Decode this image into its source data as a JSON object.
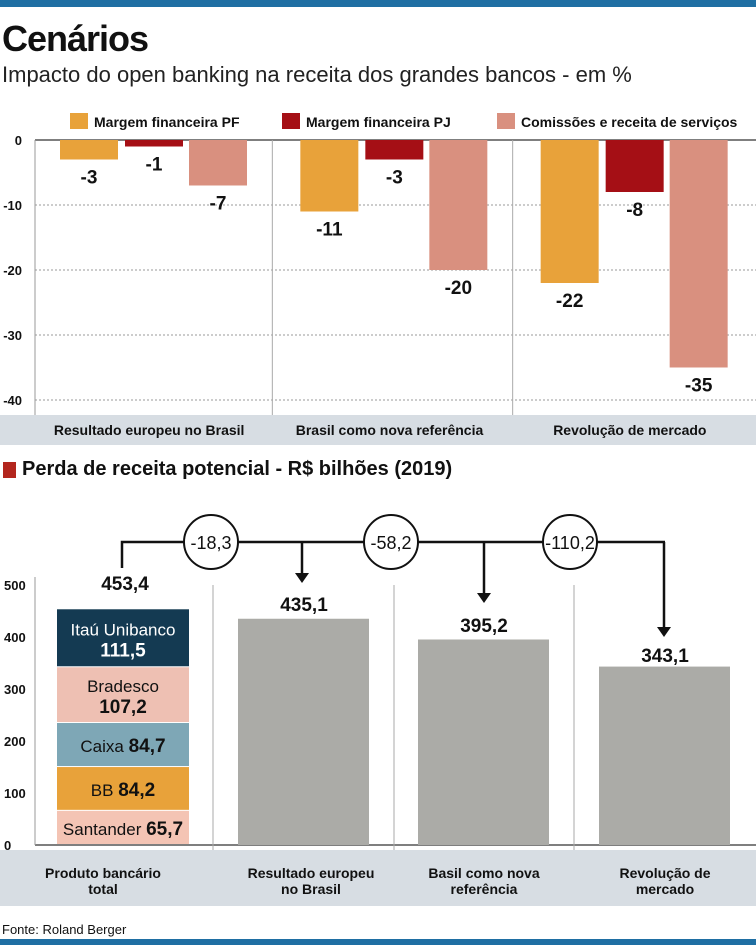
{
  "title": "Cenários",
  "subtitle": "Impacto do open banking na receita dos grandes bancos - em %",
  "section2_title": "Perda de receita potencial - R$ bilhões (2019)",
  "source": "Fonte: Roland Berger",
  "colors": {
    "margem_pf": "#e8a23a",
    "margem_pj": "#a50f15",
    "comissoes": "#d9907f",
    "header_band": "#d7dde3",
    "gray_bar": "#ababa7",
    "accent_bar": "#1f6fa3"
  },
  "chart_data": [
    {
      "type": "bar",
      "categories": [
        "Resultado europeu no Brasil",
        "Brasil como nova referência",
        "Revolução de mercado"
      ],
      "series": [
        {
          "name": "Margem financeira PF",
          "values": [
            -3,
            -11,
            -22
          ],
          "labels": [
            "-3",
            "-11",
            "-22"
          ],
          "color": "#e8a23a"
        },
        {
          "name": "Margem financeira PJ",
          "values": [
            -1,
            -3,
            -8
          ],
          "labels": [
            "-1",
            "-3",
            "-8"
          ],
          "color": "#a50f15"
        },
        {
          "name": "Comissões e receita de serviços",
          "values": [
            -7,
            -20,
            -35
          ],
          "labels": [
            "-7",
            "-20",
            "-35"
          ],
          "color": "#d9907f"
        }
      ],
      "yticks": [
        "0",
        "-10",
        "-20",
        "-30",
        "-40"
      ],
      "ylim": [
        -40,
        0
      ],
      "grid": true,
      "legend": "top"
    },
    {
      "type": "bar",
      "categories": [
        "Produto bancário total",
        "Resultado europeu no Brasil",
        "Basil como nova referência",
        "Revolução de mercado"
      ],
      "values": [
        453.4,
        435.1,
        395.2,
        343.1
      ],
      "value_labels": [
        "453,4",
        "435,1",
        "395,2",
        "343,1"
      ],
      "stack": [
        {
          "name": "Itaú Unibanco",
          "value": 111.5,
          "label": "111,5",
          "color": "#143a52",
          "text_color": "#ffffff"
        },
        {
          "name": "Bradesco",
          "value": 107.2,
          "label": "107,2",
          "color": "#eec0b3",
          "text_color": "#111111"
        },
        {
          "name": "Caixa",
          "value": 84.7,
          "label": "84,7",
          "color": "#7ea7b6",
          "text_color": "#111111"
        },
        {
          "name": "BB",
          "value": 84.2,
          "label": "84,2",
          "color": "#e8a23a",
          "text_color": "#111111"
        },
        {
          "name": "Santander",
          "value": 65.7,
          "label": "65,7",
          "color": "#f4c4b4",
          "text_color": "#111111"
        }
      ],
      "differences": [
        "-18,3",
        "-58,2",
        "-110,2"
      ],
      "yticks": [
        "500",
        "400",
        "300",
        "200",
        "100",
        "0"
      ],
      "ylim": [
        0,
        500
      ]
    }
  ]
}
